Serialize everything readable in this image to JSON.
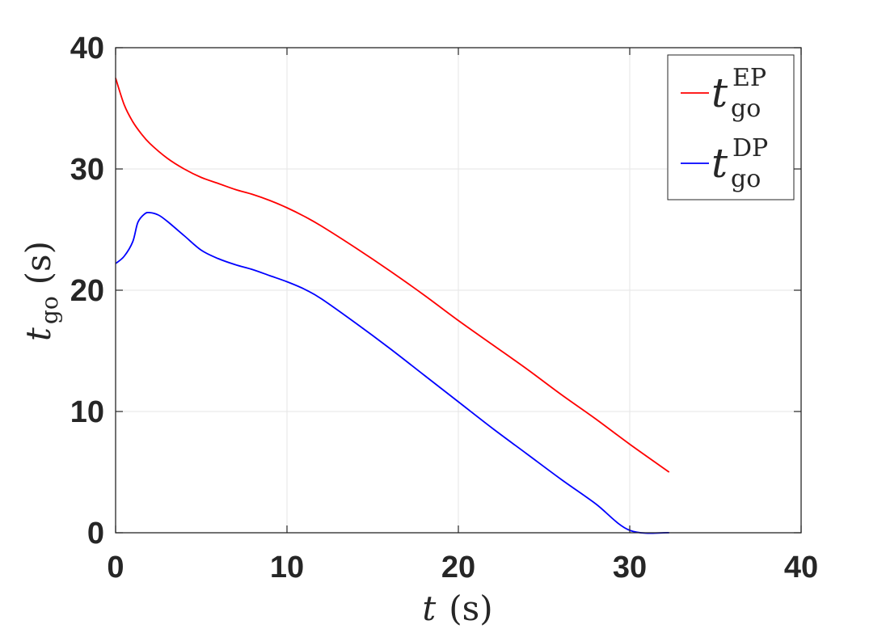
{
  "chart_data": {
    "type": "line",
    "xlabel": {
      "symbol": "t",
      "unit": "(s)"
    },
    "ylabel": {
      "symbol": "t",
      "subscript": "go",
      "unit": "(s)"
    },
    "xlim": [
      0,
      40
    ],
    "ylim": [
      0,
      40
    ],
    "xticks": [
      "0",
      "10",
      "20",
      "30",
      "40"
    ],
    "yticks": [
      "0",
      "10",
      "20",
      "30",
      "40"
    ],
    "grid": true,
    "legend_position": "top-right",
    "series": [
      {
        "name": "t_go^EP",
        "legend": {
          "symbol": "t",
          "subscript": "go",
          "superscript": "EP"
        },
        "color": "#ff0000",
        "x": [
          0,
          0.5,
          1,
          1.5,
          2,
          3,
          4,
          5,
          6,
          7,
          8,
          9,
          10,
          11,
          12,
          14,
          16,
          18,
          20,
          22,
          24,
          26,
          28,
          30,
          32.3
        ],
        "y": [
          37.5,
          35.3,
          33.9,
          32.9,
          32.1,
          30.9,
          30.0,
          29.3,
          28.8,
          28.3,
          27.9,
          27.4,
          26.8,
          26.1,
          25.3,
          23.5,
          21.6,
          19.6,
          17.5,
          15.5,
          13.5,
          11.4,
          9.4,
          7.3,
          5.0
        ]
      },
      {
        "name": "t_go^DP",
        "legend": {
          "symbol": "t",
          "subscript": "go",
          "superscript": "DP"
        },
        "color": "#0000ff",
        "x": [
          0,
          0.5,
          1,
          1.3,
          1.7,
          2,
          2.5,
          3,
          4,
          5,
          6,
          7,
          8,
          9,
          10,
          11,
          12,
          14,
          16,
          18,
          20,
          22,
          24,
          26,
          28,
          30,
          32.3
        ],
        "y": [
          22.2,
          22.8,
          24.0,
          25.6,
          26.3,
          26.4,
          26.2,
          25.7,
          24.5,
          23.3,
          22.6,
          22.1,
          21.7,
          21.2,
          20.7,
          20.1,
          19.3,
          17.3,
          15.2,
          13.0,
          10.8,
          8.6,
          6.5,
          4.4,
          2.4,
          0.2,
          0
        ]
      }
    ]
  }
}
